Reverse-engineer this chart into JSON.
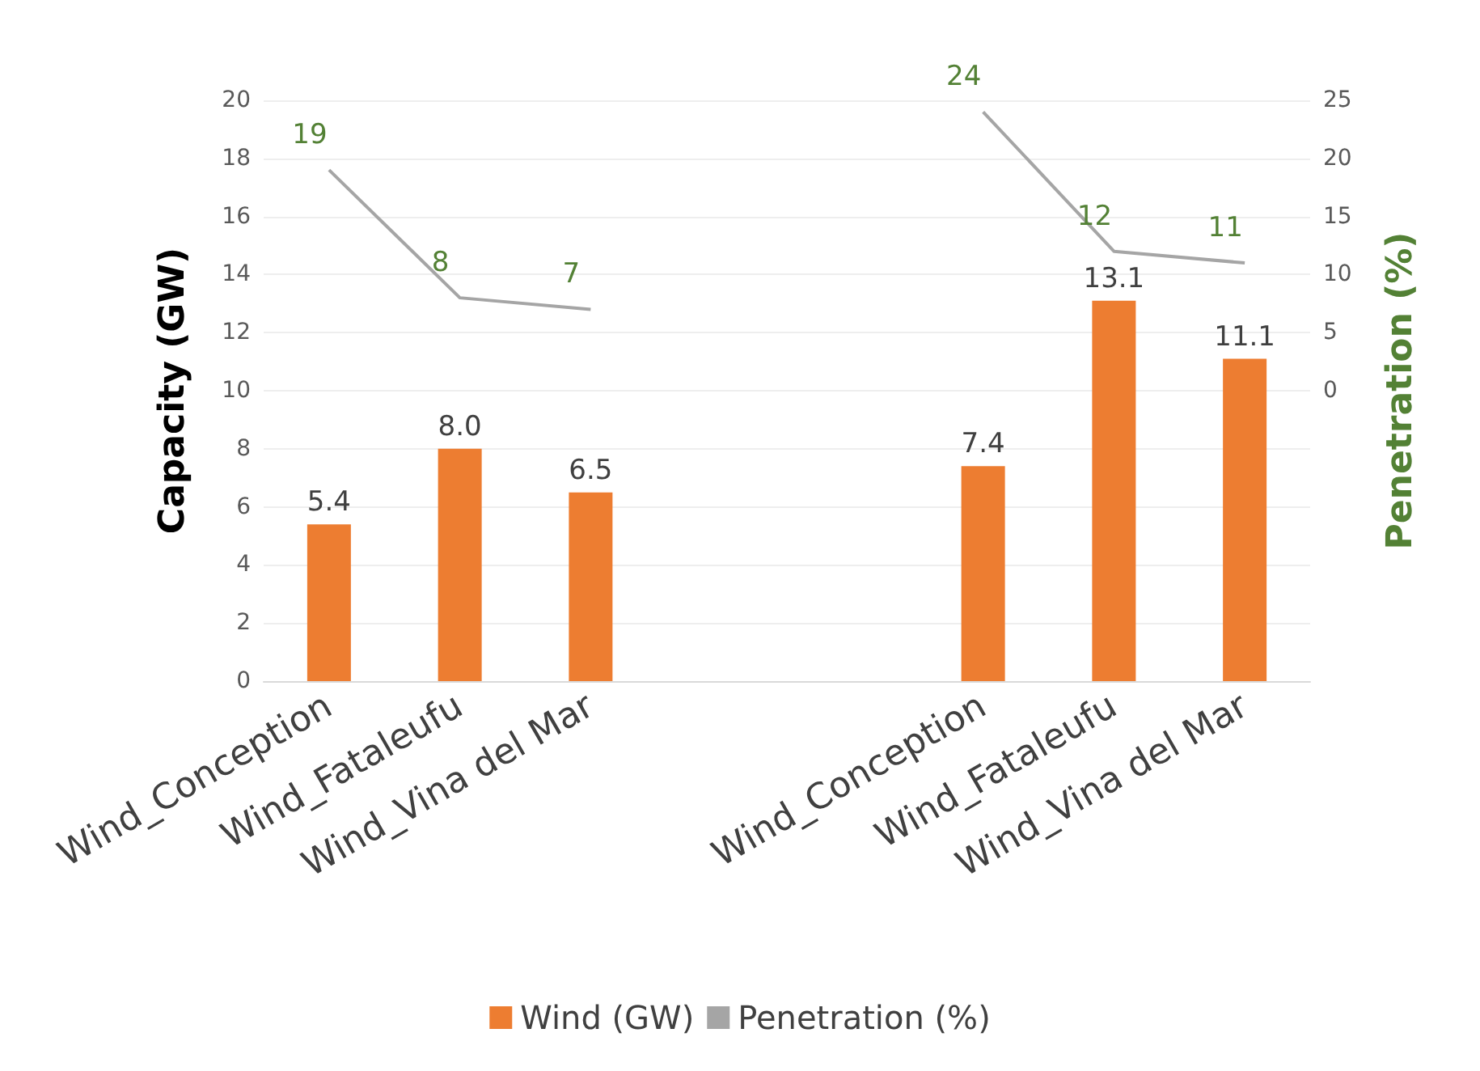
{
  "chart_data": {
    "type": "bar",
    "ylabel": "Capacity (GW)",
    "y2label": "Penetration (%)",
    "categories": [
      "Wind_Conception",
      "Wind_Fataleufu",
      "Wind_Vina del Mar",
      null,
      null,
      "Wind_Conception",
      "Wind_Fataleufu",
      "Wind_Vina del Mar"
    ],
    "series": [
      {
        "name": "Wind (GW)",
        "color": "#ed7d31",
        "values": [
          5.4,
          8.0,
          6.5,
          null,
          null,
          7.4,
          13.1,
          11.1
        ],
        "value_labels": [
          "5.4",
          "8.0",
          "6.5",
          null,
          null,
          "7.4",
          "13.1",
          "11.1"
        ]
      },
      {
        "name": "Penetration (%)",
        "type": "line",
        "axis": "y2",
        "color": "#a5a5a5",
        "values": [
          19,
          8,
          7,
          null,
          null,
          24,
          12,
          11
        ],
        "value_labels": [
          "19",
          "8",
          "7",
          null,
          null,
          "24",
          "12",
          "11"
        ]
      }
    ],
    "ylim": [
      0,
      20
    ],
    "yticks": [
      0,
      2,
      4,
      6,
      8,
      10,
      12,
      14,
      16,
      18,
      20
    ],
    "y2lim": [
      -25,
      25
    ],
    "y2ticks": [
      0,
      5,
      10,
      15,
      20,
      25
    ],
    "grid": "y",
    "legend": "bottom",
    "marker": "none"
  }
}
